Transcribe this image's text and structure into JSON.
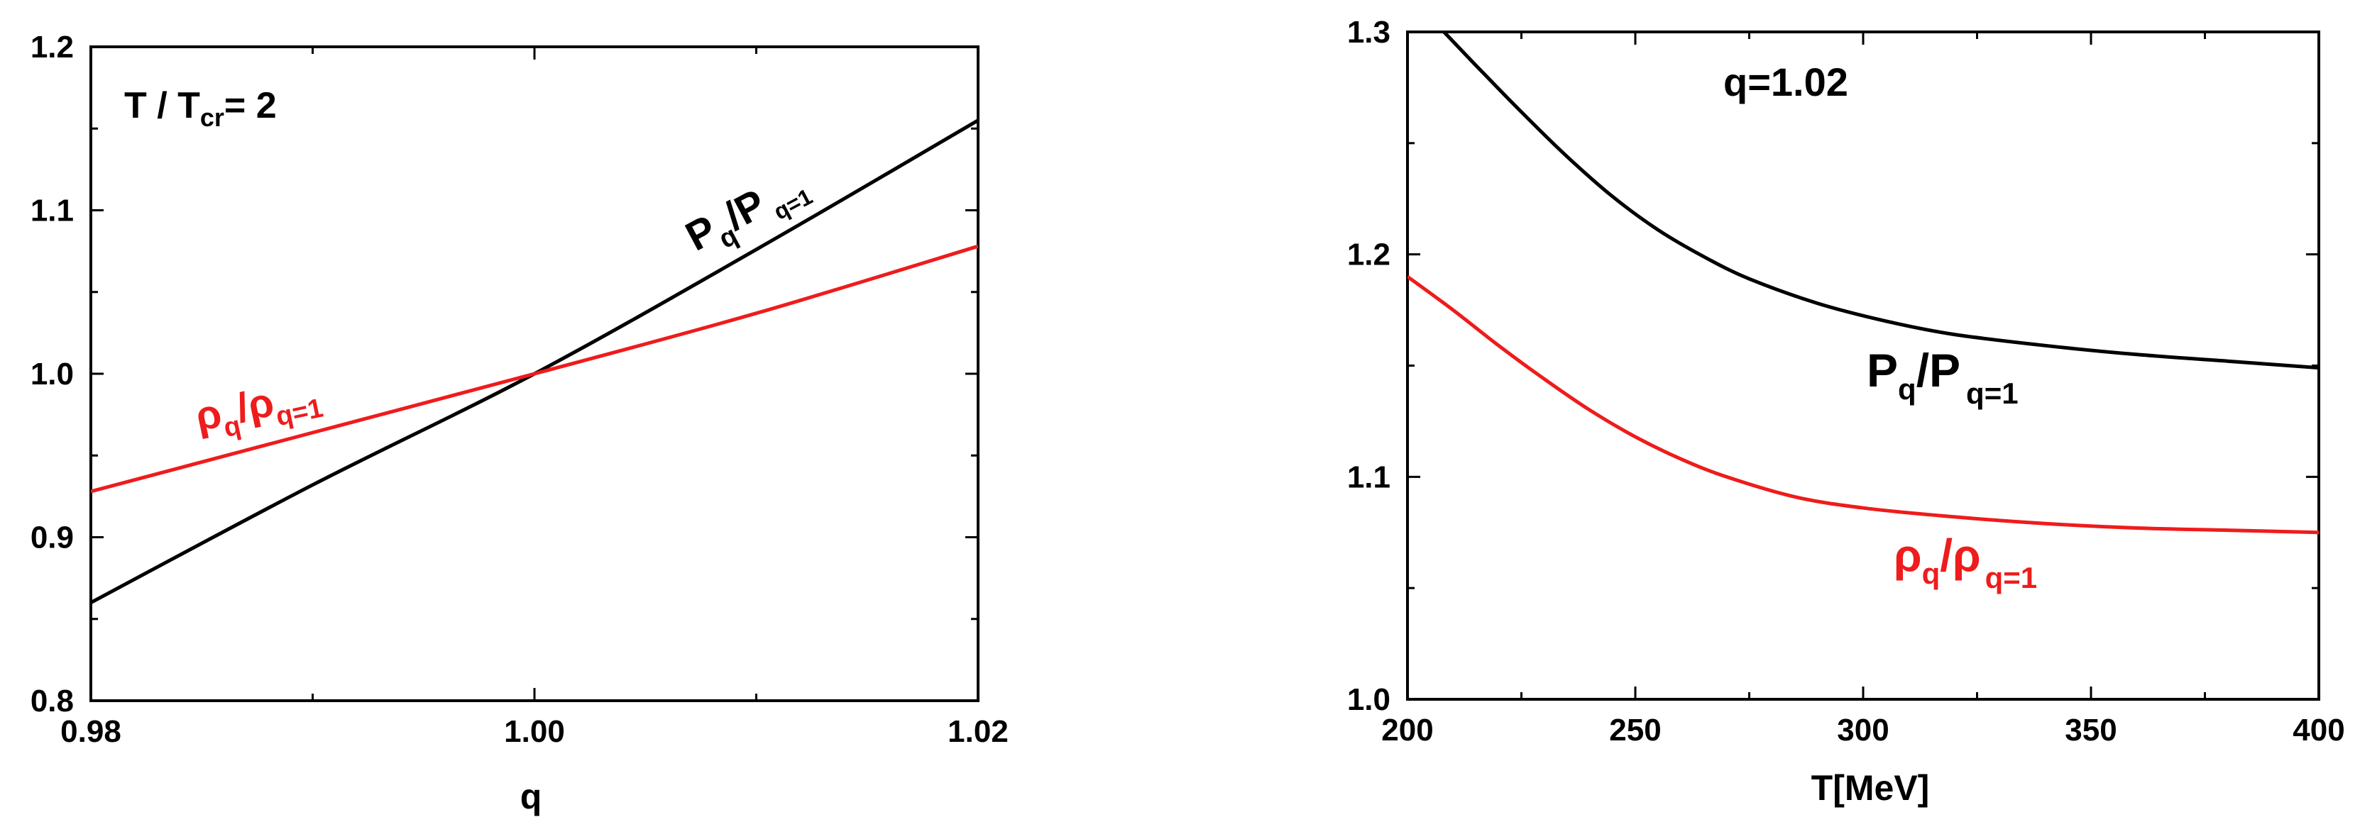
{
  "chart_data": [
    {
      "type": "line",
      "xlabel": "q",
      "ylabel": "",
      "xlim": [
        0.98,
        1.02
      ],
      "ylim": [
        0.8,
        1.2
      ],
      "x_ticks": [
        0.98,
        1.0,
        1.02
      ],
      "x_tick_labels": [
        "0.98",
        "1.00",
        "1.02"
      ],
      "y_ticks": [
        0.8,
        0.9,
        1.0,
        1.1,
        1.2
      ],
      "y_tick_labels": [
        "0.8",
        "0.9",
        "1.0",
        "1.1",
        "1.2"
      ],
      "annotation": {
        "main": "T / T",
        "sub": "cr",
        "tail": "= 2"
      },
      "series": [
        {
          "label_main": "P",
          "label_sub": "q",
          "label_mid": "/P",
          "label_sub2": "q=1",
          "color": "#000000",
          "x": [
            0.98,
            0.99,
            1.0,
            1.01,
            1.02
          ],
          "y": [
            0.86,
            0.932,
            1.0,
            1.076,
            1.155
          ]
        },
        {
          "label_main": "ρ",
          "label_sub": "q",
          "label_mid": "/ρ",
          "label_sub2": "q=1",
          "color": "#ee1c1c",
          "x": [
            0.98,
            0.99,
            1.0,
            1.01,
            1.02
          ],
          "y": [
            0.928,
            0.964,
            1.0,
            1.037,
            1.078
          ]
        }
      ]
    },
    {
      "type": "line",
      "xlabel": "T[MeV]",
      "ylabel": "",
      "xlim": [
        200,
        400
      ],
      "ylim": [
        1.0,
        1.3
      ],
      "x_ticks": [
        200,
        250,
        300,
        350,
        400
      ],
      "x_tick_labels": [
        "200",
        "250",
        "300",
        "350",
        "400"
      ],
      "y_ticks": [
        1.0,
        1.1,
        1.2,
        1.3
      ],
      "y_tick_labels": [
        "1.0",
        "1.1",
        "1.2",
        "1.3"
      ],
      "annotation": {
        "main": "q=1.02",
        "sub": "",
        "tail": ""
      },
      "series": [
        {
          "label_main": "P",
          "label_sub": "q",
          "label_mid": "/P",
          "label_sub2": "q=1",
          "color": "#000000",
          "x": [
            208,
            215,
            225,
            235,
            245,
            255,
            265,
            275,
            290,
            305,
            320,
            340,
            360,
            380,
            400
          ],
          "y": [
            1.3,
            1.285,
            1.264,
            1.244,
            1.226,
            1.211,
            1.199,
            1.189,
            1.178,
            1.17,
            1.164,
            1.159,
            1.155,
            1.152,
            1.149
          ]
        },
        {
          "label_main": "ρ",
          "label_sub": "q",
          "label_mid": "/ρ",
          "label_sub2": "q=1",
          "color": "#ee1c1c",
          "x": [
            200,
            210,
            220,
            230,
            240,
            250,
            260,
            270,
            285,
            300,
            320,
            340,
            360,
            380,
            400
          ],
          "y": [
            1.19,
            1.175,
            1.159,
            1.144,
            1.13,
            1.118,
            1.108,
            1.1,
            1.091,
            1.086,
            1.082,
            1.079,
            1.077,
            1.076,
            1.075
          ]
        }
      ]
    }
  ]
}
